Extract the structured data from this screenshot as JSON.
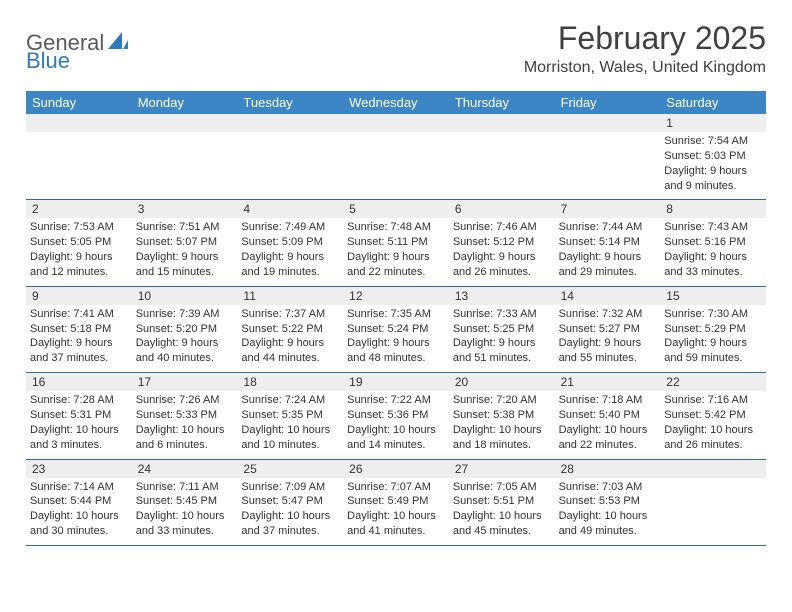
{
  "logo": {
    "general": "General",
    "blue": "Blue",
    "shape_color": "#2d7cc1"
  },
  "title": "February 2025",
  "location": "Morriston, Wales, United Kingdom",
  "colors": {
    "header_bg": "#3d86c6",
    "header_text": "#ffffff",
    "daynum_bg": "#eeeeee",
    "row_border": "#2d6aa3",
    "text": "#333333"
  },
  "day_names": [
    "Sunday",
    "Monday",
    "Tuesday",
    "Wednesday",
    "Thursday",
    "Friday",
    "Saturday"
  ],
  "weeks": [
    [
      {
        "n": "",
        "sr": "",
        "ss": "",
        "dl1": "",
        "dl2": ""
      },
      {
        "n": "",
        "sr": "",
        "ss": "",
        "dl1": "",
        "dl2": ""
      },
      {
        "n": "",
        "sr": "",
        "ss": "",
        "dl1": "",
        "dl2": ""
      },
      {
        "n": "",
        "sr": "",
        "ss": "",
        "dl1": "",
        "dl2": ""
      },
      {
        "n": "",
        "sr": "",
        "ss": "",
        "dl1": "",
        "dl2": ""
      },
      {
        "n": "",
        "sr": "",
        "ss": "",
        "dl1": "",
        "dl2": ""
      },
      {
        "n": "1",
        "sr": "Sunrise: 7:54 AM",
        "ss": "Sunset: 5:03 PM",
        "dl1": "Daylight: 9 hours",
        "dl2": "and 9 minutes."
      }
    ],
    [
      {
        "n": "2",
        "sr": "Sunrise: 7:53 AM",
        "ss": "Sunset: 5:05 PM",
        "dl1": "Daylight: 9 hours",
        "dl2": "and 12 minutes."
      },
      {
        "n": "3",
        "sr": "Sunrise: 7:51 AM",
        "ss": "Sunset: 5:07 PM",
        "dl1": "Daylight: 9 hours",
        "dl2": "and 15 minutes."
      },
      {
        "n": "4",
        "sr": "Sunrise: 7:49 AM",
        "ss": "Sunset: 5:09 PM",
        "dl1": "Daylight: 9 hours",
        "dl2": "and 19 minutes."
      },
      {
        "n": "5",
        "sr": "Sunrise: 7:48 AM",
        "ss": "Sunset: 5:11 PM",
        "dl1": "Daylight: 9 hours",
        "dl2": "and 22 minutes."
      },
      {
        "n": "6",
        "sr": "Sunrise: 7:46 AM",
        "ss": "Sunset: 5:12 PM",
        "dl1": "Daylight: 9 hours",
        "dl2": "and 26 minutes."
      },
      {
        "n": "7",
        "sr": "Sunrise: 7:44 AM",
        "ss": "Sunset: 5:14 PM",
        "dl1": "Daylight: 9 hours",
        "dl2": "and 29 minutes."
      },
      {
        "n": "8",
        "sr": "Sunrise: 7:43 AM",
        "ss": "Sunset: 5:16 PM",
        "dl1": "Daylight: 9 hours",
        "dl2": "and 33 minutes."
      }
    ],
    [
      {
        "n": "9",
        "sr": "Sunrise: 7:41 AM",
        "ss": "Sunset: 5:18 PM",
        "dl1": "Daylight: 9 hours",
        "dl2": "and 37 minutes."
      },
      {
        "n": "10",
        "sr": "Sunrise: 7:39 AM",
        "ss": "Sunset: 5:20 PM",
        "dl1": "Daylight: 9 hours",
        "dl2": "and 40 minutes."
      },
      {
        "n": "11",
        "sr": "Sunrise: 7:37 AM",
        "ss": "Sunset: 5:22 PM",
        "dl1": "Daylight: 9 hours",
        "dl2": "and 44 minutes."
      },
      {
        "n": "12",
        "sr": "Sunrise: 7:35 AM",
        "ss": "Sunset: 5:24 PM",
        "dl1": "Daylight: 9 hours",
        "dl2": "and 48 minutes."
      },
      {
        "n": "13",
        "sr": "Sunrise: 7:33 AM",
        "ss": "Sunset: 5:25 PM",
        "dl1": "Daylight: 9 hours",
        "dl2": "and 51 minutes."
      },
      {
        "n": "14",
        "sr": "Sunrise: 7:32 AM",
        "ss": "Sunset: 5:27 PM",
        "dl1": "Daylight: 9 hours",
        "dl2": "and 55 minutes."
      },
      {
        "n": "15",
        "sr": "Sunrise: 7:30 AM",
        "ss": "Sunset: 5:29 PM",
        "dl1": "Daylight: 9 hours",
        "dl2": "and 59 minutes."
      }
    ],
    [
      {
        "n": "16",
        "sr": "Sunrise: 7:28 AM",
        "ss": "Sunset: 5:31 PM",
        "dl1": "Daylight: 10 hours",
        "dl2": "and 3 minutes."
      },
      {
        "n": "17",
        "sr": "Sunrise: 7:26 AM",
        "ss": "Sunset: 5:33 PM",
        "dl1": "Daylight: 10 hours",
        "dl2": "and 6 minutes."
      },
      {
        "n": "18",
        "sr": "Sunrise: 7:24 AM",
        "ss": "Sunset: 5:35 PM",
        "dl1": "Daylight: 10 hours",
        "dl2": "and 10 minutes."
      },
      {
        "n": "19",
        "sr": "Sunrise: 7:22 AM",
        "ss": "Sunset: 5:36 PM",
        "dl1": "Daylight: 10 hours",
        "dl2": "and 14 minutes."
      },
      {
        "n": "20",
        "sr": "Sunrise: 7:20 AM",
        "ss": "Sunset: 5:38 PM",
        "dl1": "Daylight: 10 hours",
        "dl2": "and 18 minutes."
      },
      {
        "n": "21",
        "sr": "Sunrise: 7:18 AM",
        "ss": "Sunset: 5:40 PM",
        "dl1": "Daylight: 10 hours",
        "dl2": "and 22 minutes."
      },
      {
        "n": "22",
        "sr": "Sunrise: 7:16 AM",
        "ss": "Sunset: 5:42 PM",
        "dl1": "Daylight: 10 hours",
        "dl2": "and 26 minutes."
      }
    ],
    [
      {
        "n": "23",
        "sr": "Sunrise: 7:14 AM",
        "ss": "Sunset: 5:44 PM",
        "dl1": "Daylight: 10 hours",
        "dl2": "and 30 minutes."
      },
      {
        "n": "24",
        "sr": "Sunrise: 7:11 AM",
        "ss": "Sunset: 5:45 PM",
        "dl1": "Daylight: 10 hours",
        "dl2": "and 33 minutes."
      },
      {
        "n": "25",
        "sr": "Sunrise: 7:09 AM",
        "ss": "Sunset: 5:47 PM",
        "dl1": "Daylight: 10 hours",
        "dl2": "and 37 minutes."
      },
      {
        "n": "26",
        "sr": "Sunrise: 7:07 AM",
        "ss": "Sunset: 5:49 PM",
        "dl1": "Daylight: 10 hours",
        "dl2": "and 41 minutes."
      },
      {
        "n": "27",
        "sr": "Sunrise: 7:05 AM",
        "ss": "Sunset: 5:51 PM",
        "dl1": "Daylight: 10 hours",
        "dl2": "and 45 minutes."
      },
      {
        "n": "28",
        "sr": "Sunrise: 7:03 AM",
        "ss": "Sunset: 5:53 PM",
        "dl1": "Daylight: 10 hours",
        "dl2": "and 49 minutes."
      },
      {
        "n": "",
        "sr": "",
        "ss": "",
        "dl1": "",
        "dl2": ""
      }
    ]
  ]
}
